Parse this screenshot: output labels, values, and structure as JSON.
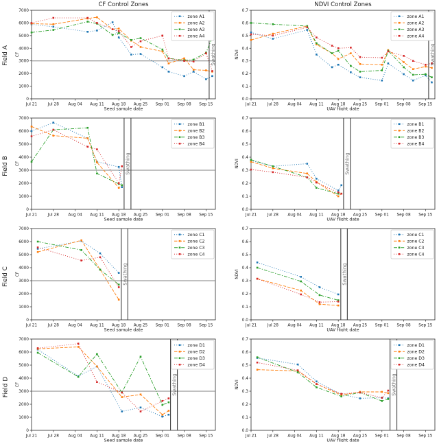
{
  "layout": {
    "row_labels": [
      "Field A",
      "Field B",
      "Field C",
      "Field D"
    ],
    "zone_colors": [
      "#1f77b4",
      "#ff7f0e",
      "#2ca02c",
      "#d62728"
    ],
    "zone_linestyles": [
      "dotted",
      "dashed",
      "dashdot",
      "dotted"
    ],
    "hline_color": "#808080",
    "swathing_line_color": "#404040",
    "swathing_text_color": "#757575",
    "spine_color": "#262626",
    "background": "#ffffff",
    "legend_position": "upper right"
  },
  "chart_data": [
    {
      "type": "line",
      "field": "Field A",
      "measure": "CF",
      "title": "CF Control Zones",
      "xlabel": "Seed sample date",
      "ylabel": "CF",
      "ylim": [
        0,
        7000
      ],
      "ytick_step": 1000,
      "xtick_labels": [
        "Jul 21",
        "Jul 28",
        "Aug 04",
        "Aug 11",
        "Aug 18",
        "Aug 25",
        "Sep 01",
        "Sep 08",
        "Sep 15"
      ],
      "x_dates": [
        "Jul 21",
        "Jul 28",
        "Aug 08",
        "Aug 11",
        "Aug 16",
        "Aug 18",
        "Aug 22",
        "Aug 25",
        "Sep 01",
        "Sep 03",
        "Sep 08",
        "Sep 11",
        "Sep 15",
        "Sep 17"
      ],
      "series": [
        {
          "name": "zone A1",
          "values": [
            5900,
            5700,
            5300,
            5400,
            6050,
            4850,
            3500,
            3550,
            2500,
            2150,
            1800,
            2150,
            1550,
            1800
          ]
        },
        {
          "name": "zone A2",
          "values": [
            5950,
            5900,
            6350,
            6450,
            5500,
            5550,
            4600,
            4100,
            3750,
            2800,
            3200,
            2300,
            2250,
            2150
          ]
        },
        {
          "name": "zone A3",
          "values": [
            5250,
            5450,
            6100,
            5950,
            5050,
            5200,
            4650,
            4800,
            3900,
            3200,
            3050,
            3100,
            3650,
            4850
          ]
        },
        {
          "name": "zone A4",
          "values": [
            6000,
            6400,
            6400,
            6000,
            5500,
            5350,
            4100,
            4550,
            5000,
            3200,
            3000,
            2950,
            3600,
            2200
          ]
        }
      ],
      "hline": 3000,
      "swathing": {
        "label": "Swathing",
        "days": [
          57
        ]
      }
    },
    {
      "type": "line",
      "field": "Field A",
      "measure": "NDVI",
      "title": "NDVI Control Zones",
      "xlabel": "UAV flight date",
      "ylabel": "NDVI",
      "ylim": [
        0,
        0.7
      ],
      "ytick_step": 0.1,
      "xtick_labels": [
        "Jul 21",
        "Jul 28",
        "Aug 04",
        "Aug 11",
        "Aug 18",
        "Aug 25",
        "Sep 01",
        "Sep 08",
        "Sep 15"
      ],
      "x_dates": [
        "Jul 21",
        "Jul 28",
        "Aug 08",
        "Aug 11",
        "Aug 16",
        "Aug 18",
        "Aug 22",
        "Aug 25",
        "Sep 01",
        "Sep 03",
        "Sep 08",
        "Sep 11",
        "Sep 15",
        "Sep 17"
      ],
      "series": [
        {
          "name": "zone A1",
          "values": [
            0.525,
            0.475,
            0.545,
            0.35,
            0.25,
            0.27,
            0.21,
            0.17,
            0.145,
            0.28,
            0.195,
            0.145,
            0.185,
            0.13
          ]
        },
        {
          "name": "zone A2",
          "values": [
            0.465,
            0.515,
            0.575,
            0.43,
            0.36,
            0.315,
            0.36,
            0.275,
            0.27,
            0.385,
            0.29,
            0.235,
            0.255,
            0.245
          ]
        },
        {
          "name": "zone A3",
          "values": [
            0.6,
            0.59,
            0.575,
            0.44,
            0.36,
            0.38,
            0.26,
            0.215,
            0.225,
            0.38,
            0.25,
            0.19,
            0.195,
            0.17
          ]
        },
        {
          "name": "zone A4",
          "values": [
            0.51,
            0.5,
            0.565,
            0.485,
            0.42,
            0.4,
            0.405,
            0.33,
            0.325,
            0.375,
            0.34,
            0.3,
            0.27,
            0.28
          ]
        }
      ],
      "hline": null,
      "swathing": {
        "label": "Swathing",
        "days": [
          57
        ]
      }
    },
    {
      "type": "line",
      "field": "Field B",
      "measure": "CF",
      "title": "",
      "xlabel": "Seed sample date",
      "ylabel": "CF",
      "ylim": [
        0,
        7000
      ],
      "ytick_step": 1000,
      "xtick_labels": [
        "Jul 21",
        "Jul 28",
        "Aug 04",
        "Aug 11",
        "Aug 18",
        "Aug 25",
        "Sep 01",
        "Sep 08",
        "Sep 15"
      ],
      "x_dates": [
        "Jul 21",
        "Jul 28",
        "Aug 08",
        "Aug 11",
        "Aug 18",
        "Aug 19"
      ],
      "series": [
        {
          "name": "zone B1",
          "values": [
            6000,
            6650,
            5450,
            3650,
            3250,
            1700
          ]
        },
        {
          "name": "zone B2",
          "values": [
            6350,
            5650,
            5450,
            3600,
            1650,
            1850
          ]
        },
        {
          "name": "zone B3",
          "values": [
            3650,
            6100,
            6250,
            2750,
            1950,
            1850
          ]
        },
        {
          "name": "zone B4",
          "values": [
            5600,
            6100,
            4800,
            4600,
            2000,
            3300
          ]
        }
      ],
      "hline": 3000,
      "swathing": {
        "label": "Swathing",
        "days": [
          29.7,
          31.9
        ]
      }
    },
    {
      "type": "line",
      "field": "Field B",
      "measure": "NDVI",
      "title": "",
      "xlabel": "UAV flight date",
      "ylabel": "NDVI",
      "ylim": [
        0,
        0.7
      ],
      "ytick_step": 0.1,
      "xtick_labels": [
        "Jul 21",
        "Jul 28",
        "Aug 04",
        "Aug 11",
        "Aug 18",
        "Aug 25",
        "Sep 01",
        "Sep 08",
        "Sep 15"
      ],
      "x_dates": [
        "Jul 21",
        "Jul 28",
        "Aug 08",
        "Aug 11",
        "Aug 18",
        "Aug 19"
      ],
      "series": [
        {
          "name": "zone B1",
          "values": [
            0.375,
            0.33,
            0.35,
            0.235,
            0.145,
            0.185
          ]
        },
        {
          "name": "zone B2",
          "values": [
            0.365,
            0.315,
            0.275,
            0.21,
            0.1,
            0.12
          ]
        },
        {
          "name": "zone B3",
          "values": [
            0.38,
            0.33,
            0.245,
            0.165,
            0.12,
            0.12
          ]
        },
        {
          "name": "zone B4",
          "values": [
            0.305,
            0.285,
            0.245,
            0.205,
            0.13,
            0.12
          ]
        }
      ],
      "hline": null,
      "swathing": {
        "label": "Swathing",
        "days": [
          29.7,
          31.9
        ]
      }
    },
    {
      "type": "line",
      "field": "Field C",
      "measure": "CF",
      "title": "",
      "xlabel": "Seed sample date",
      "ylabel": "CF",
      "ylim": [
        0,
        7000
      ],
      "ytick_step": 1000,
      "xtick_labels": [
        "Jul 21",
        "Jul 28",
        "Aug 04",
        "Aug 11",
        "Aug 18",
        "Aug 25",
        "Sep 01",
        "Sep 08",
        "Sep 15"
      ],
      "x_dates": [
        "Jul 23",
        "Aug 06",
        "Aug 12",
        "Aug 18"
      ],
      "series": [
        {
          "name": "zone C1",
          "values": [
            5450,
            6050,
            5100,
            3600
          ]
        },
        {
          "name": "zone C2",
          "values": [
            5200,
            6100,
            3850,
            1550
          ]
        },
        {
          "name": "zone C3",
          "values": [
            6000,
            5350,
            3850,
            2700
          ]
        },
        {
          "name": "zone C4",
          "values": [
            5550,
            4550,
            4800,
            2500
          ]
        }
      ],
      "hline": 3000,
      "swathing": {
        "label": "Swathing",
        "days": [
          28.8,
          30.9
        ]
      }
    },
    {
      "type": "line",
      "field": "Field C",
      "measure": "NDVI",
      "title": "",
      "xlabel": "UAV flight date",
      "ylabel": "NDVI",
      "ylim": [
        0,
        0.7
      ],
      "ytick_step": 0.1,
      "xtick_labels": [
        "Jul 21",
        "Jul 28",
        "Aug 04",
        "Aug 11",
        "Aug 18",
        "Aug 25",
        "Sep 01",
        "Sep 08",
        "Sep 15"
      ],
      "x_dates": [
        "Jul 23",
        "Aug 06",
        "Aug 12",
        "Aug 18"
      ],
      "series": [
        {
          "name": "zone C1",
          "values": [
            0.44,
            0.33,
            0.25,
            0.195
          ]
        },
        {
          "name": "zone C2",
          "values": [
            0.315,
            0.225,
            0.12,
            0.11
          ]
        },
        {
          "name": "zone C3",
          "values": [
            0.4,
            0.295,
            0.19,
            0.15
          ]
        },
        {
          "name": "zone C4",
          "values": [
            0.315,
            0.195,
            0.135,
            0.14
          ]
        }
      ],
      "hline": null,
      "swathing": {
        "label": "Swathing",
        "days": [
          28.8,
          30.9
        ]
      }
    },
    {
      "type": "line",
      "field": "Field D",
      "measure": "CF",
      "title": "",
      "xlabel": "Seed sample date",
      "ylabel": "CF",
      "ylim": [
        0,
        7000
      ],
      "ytick_step": 1000,
      "xtick_labels": [
        "Jul 21",
        "Jul 28",
        "Aug 04",
        "Aug 11",
        "Aug 18",
        "Aug 25",
        "Sep 01",
        "Sep 08",
        "Sep 15"
      ],
      "x_dates": [
        "Jul 23",
        "Aug 05",
        "Aug 11",
        "Aug 19",
        "Aug 25",
        "Sep 01",
        "Sep 03"
      ],
      "series": [
        {
          "name": "zone D1",
          "values": [
            6200,
            4150,
            4900,
            1450,
            1750,
            1050,
            1200
          ]
        },
        {
          "name": "zone D2",
          "values": [
            6250,
            6400,
            4900,
            2550,
            2750,
            1200,
            1500
          ]
        },
        {
          "name": "zone D3",
          "values": [
            5950,
            4100,
            5850,
            2900,
            5650,
            1950,
            2150
          ]
        },
        {
          "name": "zone D4",
          "values": [
            6300,
            6650,
            3700,
            2900,
            1450,
            2250,
            2450
          ]
        }
      ],
      "hline": 3000,
      "swathing": {
        "label": "Swathing",
        "days": [
          44.6,
          46.8
        ]
      }
    },
    {
      "type": "line",
      "field": "Field D",
      "measure": "NDVI",
      "title": "",
      "xlabel": "UAV flight date",
      "ylabel": "NDVI",
      "ylim": [
        0,
        0.7
      ],
      "ytick_step": 0.1,
      "xtick_labels": [
        "Jul 21",
        "Jul 28",
        "Aug 04",
        "Aug 11",
        "Aug 18",
        "Aug 25",
        "Sep 01",
        "Sep 08",
        "Sep 15"
      ],
      "x_dates": [
        "Jul 23",
        "Aug 05",
        "Aug 11",
        "Aug 19",
        "Aug 25",
        "Sep 01",
        "Sep 03"
      ],
      "series": [
        {
          "name": "zone D1",
          "values": [
            0.555,
            0.505,
            0.375,
            0.275,
            0.245,
            0.25,
            0.245
          ]
        },
        {
          "name": "zone D2",
          "values": [
            0.465,
            0.455,
            0.355,
            0.27,
            0.295,
            0.295,
            0.285
          ]
        },
        {
          "name": "zone D3",
          "values": [
            0.56,
            0.445,
            0.33,
            0.26,
            0.29,
            0.225,
            0.24
          ]
        },
        {
          "name": "zone D4",
          "values": [
            0.52,
            0.46,
            0.355,
            0.28,
            0.29,
            0.25,
            0.305
          ]
        }
      ],
      "hline": null,
      "swathing": {
        "label": "Swathing",
        "days": [
          44.6,
          46.8
        ]
      }
    }
  ]
}
